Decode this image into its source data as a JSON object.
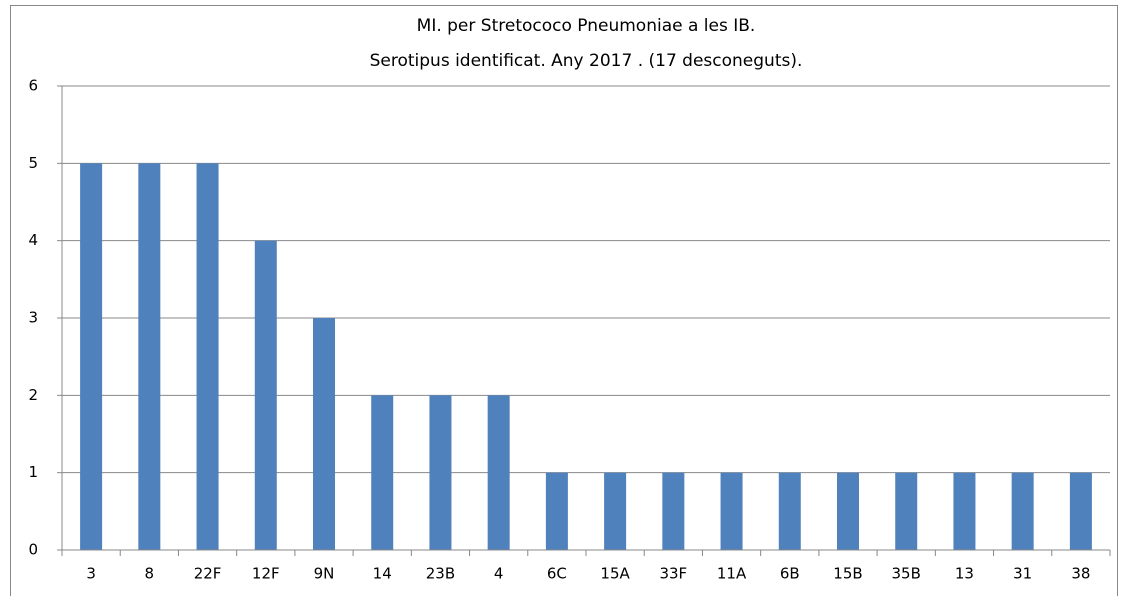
{
  "chart_data": {
    "type": "bar",
    "title": "MI. per Stretococo Pneumoniae a les IB.",
    "subtitle": "Serotipus identificat. Any 2017 . (17 desconeguts).",
    "categories": [
      "3",
      "8",
      "22F",
      "12F",
      "9N",
      "14",
      "23B",
      "4",
      "6C",
      "15A",
      "33F",
      "11A",
      "6B",
      "15B",
      "35B",
      "13",
      "31",
      "38"
    ],
    "values": [
      5,
      5,
      5,
      4,
      3,
      2,
      2,
      2,
      1,
      1,
      1,
      1,
      1,
      1,
      1,
      1,
      1,
      1
    ],
    "color": "#4f81bd",
    "ylim": [
      0,
      6
    ],
    "yticks": [
      0,
      1,
      2,
      3,
      4,
      5,
      6
    ],
    "grid": true
  }
}
